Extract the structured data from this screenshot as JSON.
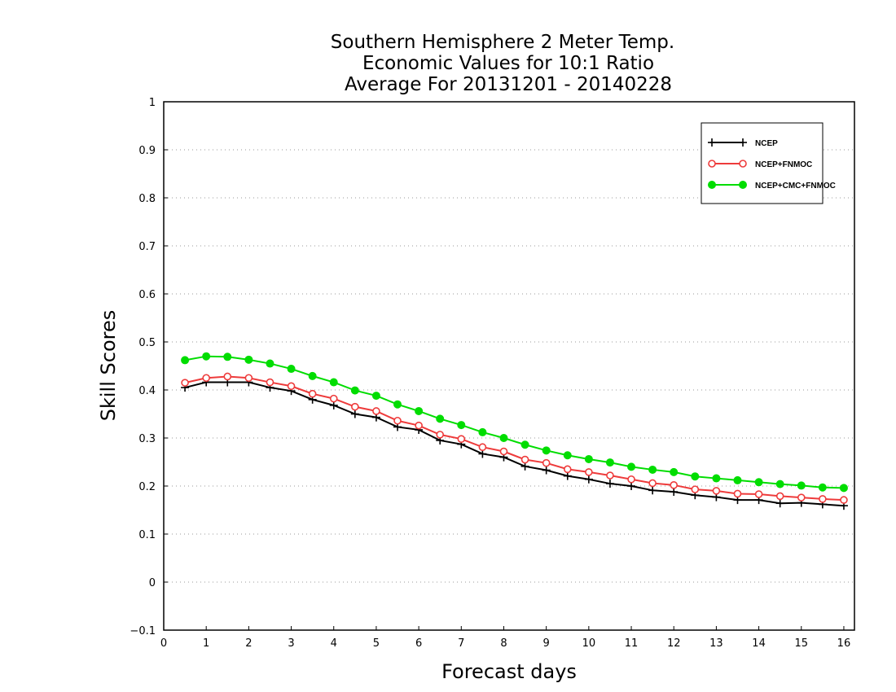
{
  "chart_data": {
    "type": "line",
    "title": [
      "Southern Hemisphere 2 Meter Temp.",
      "Economic Values for 10:1 Ratio",
      "Average For 20131201 - 20140228"
    ],
    "xlabel": "Forecast days",
    "ylabel": "Skill Scores",
    "xlim": [
      0,
      16.25
    ],
    "ylim": [
      -0.1,
      1
    ],
    "xticks": [
      0,
      1,
      2,
      3,
      4,
      5,
      6,
      7,
      8,
      9,
      10,
      11,
      12,
      13,
      14,
      15,
      16
    ],
    "xtick_labels": [
      "0",
      "1",
      "2",
      "3",
      "4",
      "5",
      "6",
      "7",
      "8",
      "9",
      "10",
      "11",
      "12",
      "13",
      "14",
      "15",
      "16"
    ],
    "yticks": [
      -0.1,
      0,
      0.1,
      0.2,
      0.3,
      0.4,
      0.5,
      0.6,
      0.7,
      0.8,
      0.9,
      1
    ],
    "ytick_labels": [
      "−0.1",
      "0",
      "0.1",
      "0.2",
      "0.3",
      "0.4",
      "0.5",
      "0.6",
      "0.7",
      "0.8",
      "0.9",
      "1"
    ],
    "grid": "horizontal dotted",
    "legend_position": "top-right",
    "x": [
      0.5,
      1.0,
      1.5,
      2.0,
      2.5,
      3.0,
      3.5,
      4.0,
      4.5,
      5.0,
      5.5,
      6.0,
      6.5,
      7.0,
      7.5,
      8.0,
      8.5,
      9.0,
      9.5,
      10.0,
      10.5,
      11.0,
      11.5,
      12.0,
      12.5,
      13.0,
      13.5,
      14.0,
      14.5,
      15.0,
      15.5,
      16.0
    ],
    "series": [
      {
        "name": "NCEP",
        "color": "#000000",
        "marker": "plus",
        "values": [
          0.405,
          0.416,
          0.416,
          0.416,
          0.405,
          0.398,
          0.38,
          0.368,
          0.35,
          0.343,
          0.323,
          0.317,
          0.295,
          0.287,
          0.267,
          0.26,
          0.241,
          0.233,
          0.221,
          0.214,
          0.205,
          0.2,
          0.191,
          0.188,
          0.181,
          0.177,
          0.171,
          0.171,
          0.164,
          0.165,
          0.162,
          0.159
        ]
      },
      {
        "name": "NCEP+FNMOC",
        "color": "#ee3b3b",
        "marker": "open-circle",
        "values": [
          0.415,
          0.425,
          0.428,
          0.425,
          0.416,
          0.408,
          0.392,
          0.382,
          0.365,
          0.356,
          0.336,
          0.326,
          0.307,
          0.298,
          0.281,
          0.272,
          0.255,
          0.248,
          0.235,
          0.229,
          0.222,
          0.214,
          0.206,
          0.202,
          0.193,
          0.19,
          0.184,
          0.183,
          0.179,
          0.176,
          0.173,
          0.171
        ]
      },
      {
        "name": "NCEP+CMC+FNMOC",
        "color": "#00dd00",
        "marker": "filled-circle",
        "values": [
          0.462,
          0.47,
          0.469,
          0.463,
          0.455,
          0.444,
          0.429,
          0.416,
          0.399,
          0.388,
          0.37,
          0.356,
          0.34,
          0.327,
          0.312,
          0.3,
          0.286,
          0.274,
          0.264,
          0.256,
          0.249,
          0.24,
          0.234,
          0.229,
          0.22,
          0.216,
          0.212,
          0.208,
          0.204,
          0.201,
          0.197,
          0.196
        ]
      }
    ]
  }
}
